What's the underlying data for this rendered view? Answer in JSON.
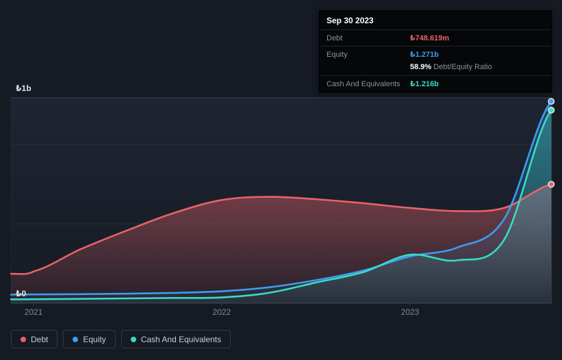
{
  "colors": {
    "background": "#151a23",
    "debt": "#e8636b",
    "equity": "#3b9ef2",
    "cash": "#38dcc6"
  },
  "tooltip": {
    "date": "Sep 30 2023",
    "debt_label": "Debt",
    "debt_value": "₺748.619m",
    "equity_label": "Equity",
    "equity_value": "₺1.271b",
    "ratio_value": "58.9%",
    "ratio_label": "Debt/Equity Ratio",
    "cash_label": "Cash And Equivalents",
    "cash_value": "₺1.216b"
  },
  "axis": {
    "y_top_label": "₺1b",
    "y_bottom_label": "₺0",
    "x_ticks": [
      "2021",
      "2022",
      "2023"
    ]
  },
  "legend": {
    "items": [
      {
        "label": "Debt",
        "color": "#e8636b"
      },
      {
        "label": "Equity",
        "color": "#3b9ef2"
      },
      {
        "label": "Cash And Equivalents",
        "color": "#38dcc6"
      }
    ]
  },
  "chart_data": {
    "type": "area",
    "unit": "₺ billions",
    "x_years": [
      2020.88,
      2021,
      2021.25,
      2021.5,
      2021.75,
      2022,
      2022.25,
      2022.5,
      2022.75,
      2023,
      2023.25,
      2023.5,
      2023.75
    ],
    "series": [
      {
        "name": "Debt",
        "color": "#e8636b",
        "values": [
          0.185,
          0.2,
          0.34,
          0.46,
          0.57,
          0.65,
          0.67,
          0.655,
          0.63,
          0.6,
          0.58,
          0.6,
          0.748619
        ]
      },
      {
        "name": "Equity",
        "color": "#3b9ef2",
        "values": [
          0.054,
          0.055,
          0.057,
          0.06,
          0.065,
          0.075,
          0.1,
          0.145,
          0.205,
          0.295,
          0.35,
          0.53,
          1.271
        ]
      },
      {
        "name": "Cash And Equivalents",
        "color": "#38dcc6",
        "values": [
          0.024,
          0.025,
          0.027,
          0.03,
          0.033,
          0.036,
          0.065,
          0.13,
          0.195,
          0.305,
          0.27,
          0.4,
          1.216
        ]
      }
    ],
    "ylim": [
      0,
      1.29
    ],
    "yticks": [
      {
        "value": 0,
        "label": "₺0"
      },
      {
        "value": 1,
        "label": "₺1b"
      }
    ],
    "x_tick_labels": [
      "2021",
      "2022",
      "2023"
    ],
    "grid": true,
    "legend_position": "bottom-left",
    "highlight_point": {
      "date": "Sep 30 2023",
      "debt": "₺748.619m",
      "equity": "₺1.271b",
      "debt_equity_ratio": "58.9%",
      "cash_and_equivalents": "₺1.216b"
    }
  }
}
